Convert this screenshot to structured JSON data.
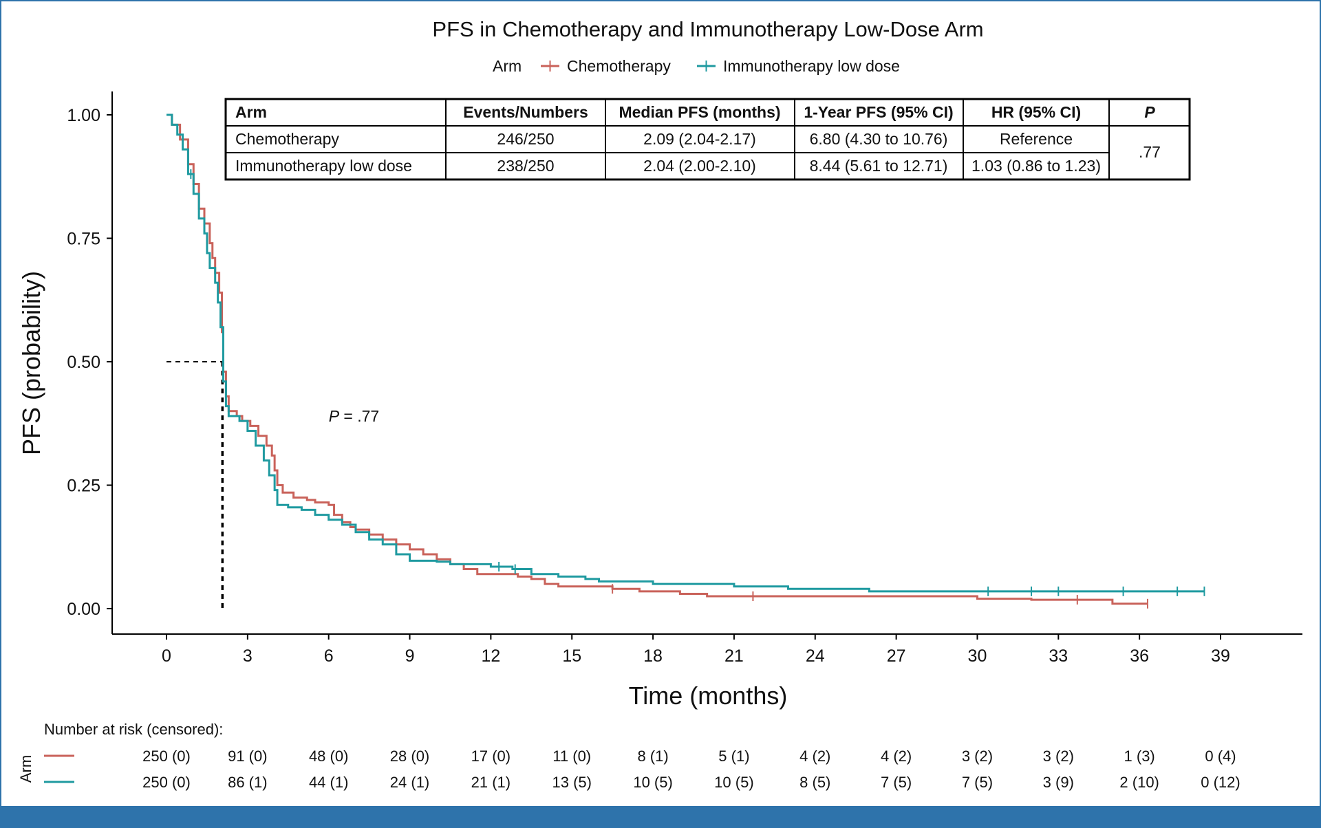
{
  "chart_data": {
    "type": "line",
    "title": "PFS in Chemotherapy and Immunotherapy Low-Dose Arm",
    "legend": {
      "title": "Arm",
      "placement": "top-center"
    },
    "xlabel": "Time (months)",
    "ylabel": "PFS (probability)",
    "xlim": [
      0,
      39
    ],
    "ylim": [
      0,
      1
    ],
    "x_ticks": [
      0,
      3,
      6,
      9,
      12,
      15,
      18,
      21,
      24,
      27,
      30,
      33,
      36,
      39
    ],
    "y_ticks": [
      0.0,
      0.25,
      0.5,
      0.75,
      1.0
    ],
    "y_tick_labels": [
      "0.00",
      "0.25",
      "0.50",
      "0.75",
      "1.00"
    ],
    "grid": false,
    "annotation": {
      "p_label": "P",
      "p_value": " = .77",
      "x": 6.0,
      "y": 0.39
    },
    "median_line": {
      "x": 2.07,
      "y": 0.5
    },
    "series": [
      {
        "name": "Chemotherapy",
        "color": "#c9625a",
        "points": [
          [
            0,
            1.0
          ],
          [
            0.2,
            0.98
          ],
          [
            0.5,
            0.95
          ],
          [
            0.8,
            0.9
          ],
          [
            1.0,
            0.86
          ],
          [
            1.2,
            0.81
          ],
          [
            1.4,
            0.78
          ],
          [
            1.6,
            0.74
          ],
          [
            1.7,
            0.71
          ],
          [
            1.8,
            0.68
          ],
          [
            1.95,
            0.64
          ],
          [
            2.05,
            0.56
          ],
          [
            2.1,
            0.48
          ],
          [
            2.2,
            0.43
          ],
          [
            2.3,
            0.4
          ],
          [
            2.6,
            0.39
          ],
          [
            2.8,
            0.38
          ],
          [
            3.1,
            0.37
          ],
          [
            3.4,
            0.35
          ],
          [
            3.7,
            0.33
          ],
          [
            3.9,
            0.31
          ],
          [
            4.0,
            0.28
          ],
          [
            4.1,
            0.25
          ],
          [
            4.3,
            0.235
          ],
          [
            4.7,
            0.225
          ],
          [
            5.2,
            0.22
          ],
          [
            5.5,
            0.215
          ],
          [
            6.0,
            0.21
          ],
          [
            6.2,
            0.19
          ],
          [
            6.5,
            0.175
          ],
          [
            6.8,
            0.165
          ],
          [
            7.0,
            0.16
          ],
          [
            7.5,
            0.15
          ],
          [
            8.0,
            0.14
          ],
          [
            8.5,
            0.13
          ],
          [
            9.0,
            0.12
          ],
          [
            9.5,
            0.11
          ],
          [
            10.0,
            0.1
          ],
          [
            10.5,
            0.09
          ],
          [
            11.0,
            0.08
          ],
          [
            11.5,
            0.07
          ],
          [
            13.0,
            0.065
          ],
          [
            13.5,
            0.06
          ],
          [
            14.0,
            0.05
          ],
          [
            14.5,
            0.045
          ],
          [
            16.5,
            0.04
          ],
          [
            17.5,
            0.035
          ],
          [
            19.0,
            0.03
          ],
          [
            20.0,
            0.025
          ],
          [
            24.0,
            0.025
          ],
          [
            30.0,
            0.02
          ],
          [
            32.0,
            0.018
          ],
          [
            35.0,
            0.01
          ],
          [
            36.3,
            0.01
          ]
        ],
        "censor": [
          16.5,
          21.7,
          33.7,
          36.3
        ]
      },
      {
        "name": "Immunotherapy low dose",
        "color": "#1f9aa0",
        "points": [
          [
            0,
            1.0
          ],
          [
            0.2,
            0.98
          ],
          [
            0.4,
            0.96
          ],
          [
            0.6,
            0.93
          ],
          [
            0.8,
            0.88
          ],
          [
            1.0,
            0.84
          ],
          [
            1.2,
            0.79
          ],
          [
            1.4,
            0.76
          ],
          [
            1.5,
            0.72
          ],
          [
            1.6,
            0.69
          ],
          [
            1.8,
            0.66
          ],
          [
            1.9,
            0.62
          ],
          [
            2.0,
            0.57
          ],
          [
            2.1,
            0.46
          ],
          [
            2.2,
            0.41
          ],
          [
            2.3,
            0.39
          ],
          [
            2.7,
            0.38
          ],
          [
            3.0,
            0.36
          ],
          [
            3.3,
            0.33
          ],
          [
            3.6,
            0.3
          ],
          [
            3.8,
            0.27
          ],
          [
            4.0,
            0.24
          ],
          [
            4.1,
            0.21
          ],
          [
            4.5,
            0.205
          ],
          [
            5.0,
            0.2
          ],
          [
            5.5,
            0.19
          ],
          [
            6.0,
            0.18
          ],
          [
            6.5,
            0.17
          ],
          [
            7.0,
            0.155
          ],
          [
            7.5,
            0.14
          ],
          [
            8.0,
            0.13
          ],
          [
            8.5,
            0.11
          ],
          [
            9.0,
            0.097
          ],
          [
            10.0,
            0.095
          ],
          [
            10.5,
            0.09
          ],
          [
            12.0,
            0.085
          ],
          [
            12.8,
            0.08
          ],
          [
            13.5,
            0.07
          ],
          [
            14.5,
            0.065
          ],
          [
            15.5,
            0.06
          ],
          [
            16.0,
            0.055
          ],
          [
            18.0,
            0.05
          ],
          [
            21.0,
            0.045
          ],
          [
            23.0,
            0.04
          ],
          [
            26.0,
            0.035
          ],
          [
            38.4,
            0.035
          ]
        ],
        "censor": [
          0.9,
          12.3,
          12.9,
          30.4,
          32.0,
          33.0,
          35.4,
          37.4,
          38.4
        ]
      }
    ],
    "stats_table": {
      "headers": [
        "Arm",
        "Events/Numbers",
        "Median PFS (months)",
        "1-Year PFS (95% CI)",
        "HR (95% CI)",
        "P"
      ],
      "rows": [
        [
          "Chemotherapy",
          "246/250",
          "2.09 (2.04-2.17)",
          "6.80 (4.30 to 10.76)",
          "Reference"
        ],
        [
          "Immunotherapy low dose",
          "238/250",
          "2.04 (2.00-2.10)",
          "8.44 (5.61 to 12.71)",
          "1.03 (0.86 to 1.23)"
        ]
      ],
      "p_value": ".77"
    },
    "risk_table": {
      "title": "Number at risk (censored):",
      "axis_label": "Arm",
      "times": [
        0,
        3,
        6,
        9,
        12,
        15,
        18,
        21,
        24,
        27,
        30,
        33,
        36,
        39
      ],
      "rows": [
        {
          "name": "Chemotherapy",
          "color": "#c9625a",
          "values": [
            "250 (0)",
            "91 (0)",
            "48 (0)",
            "28 (0)",
            "17 (0)",
            "11 (0)",
            "8 (1)",
            "5 (1)",
            "4 (2)",
            "4 (2)",
            "3 (2)",
            "3 (2)",
            "1 (3)",
            "0 (4)"
          ]
        },
        {
          "name": "Immunotherapy low dose",
          "color": "#1f9aa0",
          "values": [
            "250 (0)",
            "86 (1)",
            "44 (1)",
            "24 (1)",
            "21 (1)",
            "13 (5)",
            "10 (5)",
            "10 (5)",
            "8 (5)",
            "7 (5)",
            "7 (5)",
            "3 (9)",
            "2 (10)",
            "0 (12)"
          ]
        }
      ]
    }
  }
}
